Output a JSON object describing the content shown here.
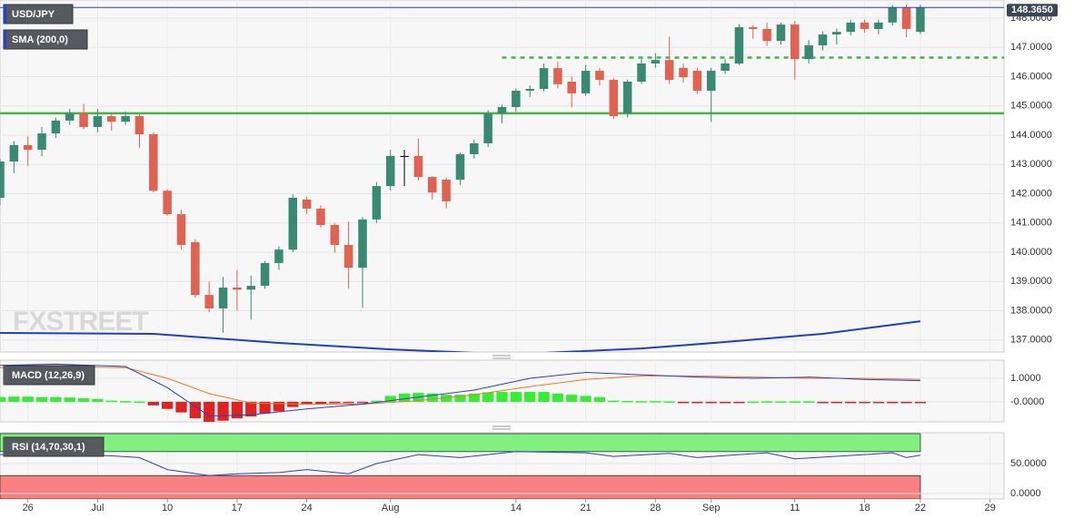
{
  "chart_data": {
    "type": "candlestick",
    "title": "USD/JPY",
    "watermark": "FXSTREET",
    "xlim": [
      0,
      72
    ],
    "xticks": [
      {
        "value": 2,
        "label": "26"
      },
      {
        "value": 7,
        "label": "Jul"
      },
      {
        "value": 12,
        "label": "10"
      },
      {
        "value": 17,
        "label": "17"
      },
      {
        "value": 22,
        "label": "24"
      },
      {
        "value": 28,
        "label": "Aug"
      },
      {
        "value": 37,
        "label": "14"
      },
      {
        "value": 42,
        "label": "21"
      },
      {
        "value": 47,
        "label": "28"
      },
      {
        "value": 51,
        "label": "Sep"
      },
      {
        "value": 57,
        "label": "11"
      },
      {
        "value": 62,
        "label": "18"
      },
      {
        "value": 66,
        "label": "22"
      },
      {
        "value": 71,
        "label": "29"
      }
    ],
    "ylim": [
      136.59,
      148.62
    ],
    "yticks": [
      {
        "value": 137,
        "label": "137.0000"
      },
      {
        "value": 138,
        "label": "138.0000"
      },
      {
        "value": 139,
        "label": "139.0000"
      },
      {
        "value": 140,
        "label": "140.0000"
      },
      {
        "value": 141,
        "label": "141.0000"
      },
      {
        "value": 142,
        "label": "142.0000"
      },
      {
        "value": 143,
        "label": "143.0000"
      },
      {
        "value": 144,
        "label": "144.0000"
      },
      {
        "value": 145,
        "label": "145.0000"
      },
      {
        "value": 146,
        "label": "146.0000"
      },
      {
        "value": 147,
        "label": "147.0000"
      },
      {
        "value": 148,
        "label": "148.0000"
      }
    ],
    "grid": true,
    "up_color": "#3a8a73",
    "down_color": "#de6352",
    "open": [
      141.86,
      143.1,
      143.66,
      143.5,
      144.06,
      144.5,
      144.75,
      144.28,
      144.65,
      144.46,
      144.65,
      144.03,
      142.1,
      141.3,
      140.34,
      138.54,
      138.08,
      138.79,
      138.72,
      138.85,
      139.63,
      140.09,
      141.8,
      141.49,
      140.93,
      140.25,
      139.47,
      141.12,
      142.26,
      143.29,
      143.29,
      142.57,
      142.48,
      142.48,
      143.35,
      143.72,
      144.74,
      144.96,
      145.52,
      145.58,
      146.29,
      145.83,
      145.43,
      146.2,
      145.89,
      144.74,
      145.83,
      146.45,
      146.57,
      146.3,
      146.2,
      145.52,
      146.2,
      146.45,
      147.69,
      147.63,
      147.22,
      147.78,
      146.6,
      147.07,
      147.44,
      147.53,
      147.85,
      147.63,
      147.85,
      148.37,
      147.53
    ],
    "high": [
      143.2,
      143.8,
      143.96,
      144.28,
      144.6,
      144.9,
      145.07,
      144.9,
      144.75,
      144.8,
      144.72,
      144.1,
      142.15,
      141.45,
      140.45,
      139.0,
      139.15,
      139.4,
      139.2,
      139.7,
      140.2,
      141.98,
      141.9,
      141.6,
      141.0,
      141.05,
      141.2,
      142.4,
      143.5,
      143.5,
      143.88,
      142.6,
      142.55,
      143.4,
      143.85,
      144.85,
      145.05,
      145.6,
      145.7,
      146.45,
      146.5,
      146.0,
      146.4,
      146.3,
      145.95,
      145.9,
      146.6,
      146.8,
      147.37,
      146.45,
      146.3,
      146.3,
      146.6,
      147.8,
      147.75,
      147.85,
      147.85,
      147.9,
      147.25,
      147.55,
      147.65,
      147.95,
      147.95,
      147.95,
      148.45,
      148.46,
      148.46
    ],
    "low": [
      141.6,
      142.7,
      142.94,
      143.28,
      143.9,
      144.35,
      144.2,
      144.1,
      144.15,
      144.35,
      143.56,
      142.05,
      141.25,
      140.1,
      138.45,
      137.95,
      137.25,
      138.0,
      137.7,
      138.75,
      139.4,
      140.0,
      141.3,
      140.85,
      139.98,
      138.75,
      138.1,
      141.0,
      142.1,
      142.26,
      142.45,
      141.8,
      141.5,
      142.3,
      143.2,
      143.6,
      144.4,
      144.8,
      145.3,
      145.5,
      145.6,
      144.95,
      145.35,
      145.7,
      144.55,
      144.6,
      145.75,
      146.3,
      145.75,
      145.8,
      145.4,
      144.45,
      146.1,
      146.4,
      147.3,
      147.05,
      147.1,
      145.9,
      146.45,
      146.9,
      147.1,
      147.4,
      147.5,
      147.45,
      147.75,
      147.35,
      147.45
    ],
    "close": [
      143.1,
      143.66,
      143.5,
      144.06,
      144.5,
      144.75,
      144.28,
      144.65,
      144.46,
      144.65,
      144.03,
      142.1,
      141.3,
      140.25,
      138.54,
      138.08,
      138.79,
      138.72,
      138.85,
      139.63,
      140.09,
      141.86,
      141.49,
      140.93,
      140.25,
      139.47,
      141.12,
      142.26,
      143.29,
      143.29,
      142.57,
      142.04,
      141.74,
      143.35,
      143.72,
      144.74,
      144.96,
      145.52,
      145.58,
      146.29,
      145.74,
      145.43,
      146.2,
      145.89,
      144.65,
      145.83,
      146.45,
      146.57,
      145.89,
      145.98,
      145.52,
      146.2,
      146.45,
      147.69,
      147.63,
      147.22,
      147.78,
      146.6,
      147.07,
      147.44,
      147.53,
      147.85,
      147.63,
      147.85,
      148.37,
      147.63,
      148.37
    ],
    "sma": {
      "name": "SMA (200,0)",
      "color": "#1f3fc8",
      "x": [
        0,
        11,
        20,
        28,
        34,
        39,
        46,
        52,
        59,
        66
      ],
      "values": [
        137.24,
        137.21,
        136.9,
        136.68,
        136.56,
        136.56,
        136.71,
        136.93,
        137.21,
        137.64
      ]
    },
    "levels": [
      {
        "value": 144.75,
        "style": "solid",
        "color": "#4caf50",
        "from": 0
      },
      {
        "value": 146.65,
        "style": "dashed",
        "color": "#4caf50",
        "from": 36
      }
    ],
    "last_price": 148.365,
    "last_price_label": "148.3650",
    "macd": {
      "name": "MACD (12,26,9)",
      "ylim": [
        -0.85,
        1.77
      ],
      "yticks": [
        {
          "value": 0,
          "label": "-0.0000"
        },
        {
          "value": 1,
          "label": "1.0000"
        }
      ],
      "histogram": [
        0.2,
        0.22,
        0.22,
        0.2,
        0.2,
        0.18,
        0.15,
        0.12,
        0.05,
        0.03,
        0.01,
        -0.15,
        -0.3,
        -0.45,
        -0.7,
        -0.85,
        -0.8,
        -0.7,
        -0.62,
        -0.5,
        -0.4,
        -0.22,
        -0.12,
        -0.08,
        -0.06,
        -0.04,
        -0.02,
        0.05,
        0.25,
        0.35,
        0.38,
        0.36,
        0.3,
        0.3,
        0.35,
        0.4,
        0.42,
        0.42,
        0.42,
        0.42,
        0.35,
        0.3,
        0.25,
        0.2,
        0.05,
        0.04,
        0.03,
        0.03,
        0.02,
        -0.02,
        -0.04,
        -0.05,
        -0.05,
        -0.02,
        0.01,
        0.02,
        0.02,
        0.02,
        0.02,
        -0.02,
        -0.03,
        -0.04,
        -0.04,
        -0.04,
        -0.04,
        -0.04,
        -0.04
      ],
      "up_color": "#33ee33",
      "down_color": "#e02222",
      "x": [
        0,
        4,
        9,
        12,
        15,
        18,
        22,
        26,
        30,
        34,
        38,
        42,
        46,
        50,
        54,
        58,
        62,
        66
      ],
      "line": {
        "color": "#2a3fd0",
        "values": [
          1.55,
          1.6,
          1.5,
          0.6,
          -0.6,
          -0.55,
          -0.3,
          -0.1,
          0.2,
          0.5,
          1.0,
          1.25,
          1.15,
          1.05,
          1.0,
          1.05,
          0.95,
          0.9
        ]
      },
      "signal": {
        "color": "#f07a20",
        "values": [
          1.45,
          1.5,
          1.45,
          1.0,
          0.35,
          -0.05,
          -0.1,
          -0.1,
          0.05,
          0.3,
          0.65,
          0.95,
          1.1,
          1.1,
          1.05,
          1.0,
          1.0,
          0.95
        ]
      }
    },
    "rsi": {
      "name": "RSI (14,70,30,1)",
      "ylim": [
        -9,
        101.5
      ],
      "yticks": [
        {
          "value": 0,
          "label": "0.0000"
        },
        {
          "value": 50,
          "label": "50.0000"
        }
      ],
      "overbought": [
        70,
        100
      ],
      "oversold": [
        30,
        -9
      ],
      "overbought_color": "#80f080",
      "oversold_color": "#f88080",
      "color": "#2a3fd0",
      "x": [
        0,
        4,
        8,
        10,
        12,
        15,
        17,
        20,
        22,
        25,
        27,
        30,
        33,
        37,
        42,
        44,
        48,
        50,
        53,
        55,
        57,
        62,
        64,
        65,
        66
      ],
      "values": [
        65,
        65,
        63,
        60,
        40,
        30,
        33,
        35,
        40,
        33,
        50,
        65,
        60,
        70,
        68,
        62,
        67,
        60,
        65,
        68,
        58,
        65,
        68,
        60,
        64
      ]
    }
  }
}
